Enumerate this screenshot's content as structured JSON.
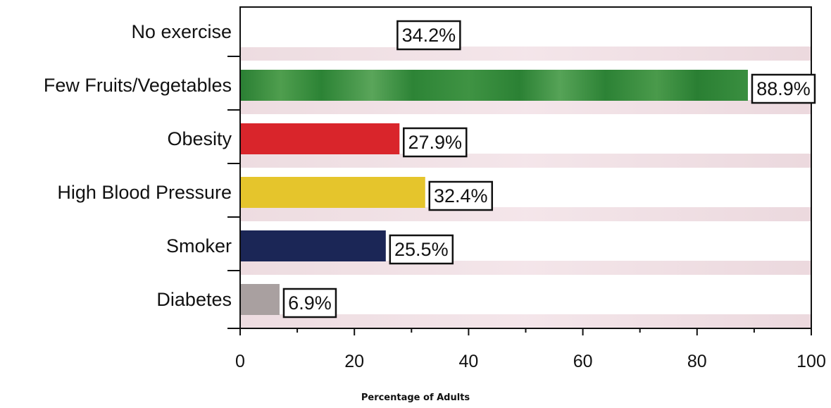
{
  "chart_data": {
    "type": "bar",
    "orientation": "horizontal",
    "categories": [
      "No exercise",
      "Few Fruits/Vegetables",
      "Obesity",
      "High Blood Pressure",
      "Smoker",
      "Diabetes"
    ],
    "values": [
      34.2,
      88.9,
      27.9,
      32.4,
      25.5,
      6.9
    ],
    "value_labels": [
      "34.2%",
      "88.9%",
      "27.9%",
      "32.4%",
      "25.5%",
      "6.9%"
    ],
    "bar_colors": [
      "#ffffff",
      "#2f8a3a",
      "#d9252b",
      "#e5c52c",
      "#1b2656",
      "#a9a0a0"
    ],
    "xlabel": "Percentage of Adults",
    "ylabel": "",
    "xlim": [
      0,
      100
    ],
    "x_ticks": [
      0,
      20,
      40,
      60,
      80,
      100
    ],
    "x_tick_labels": [
      "0",
      "20",
      "40",
      "60",
      "80",
      "100"
    ],
    "grid": false,
    "legend": "none"
  }
}
